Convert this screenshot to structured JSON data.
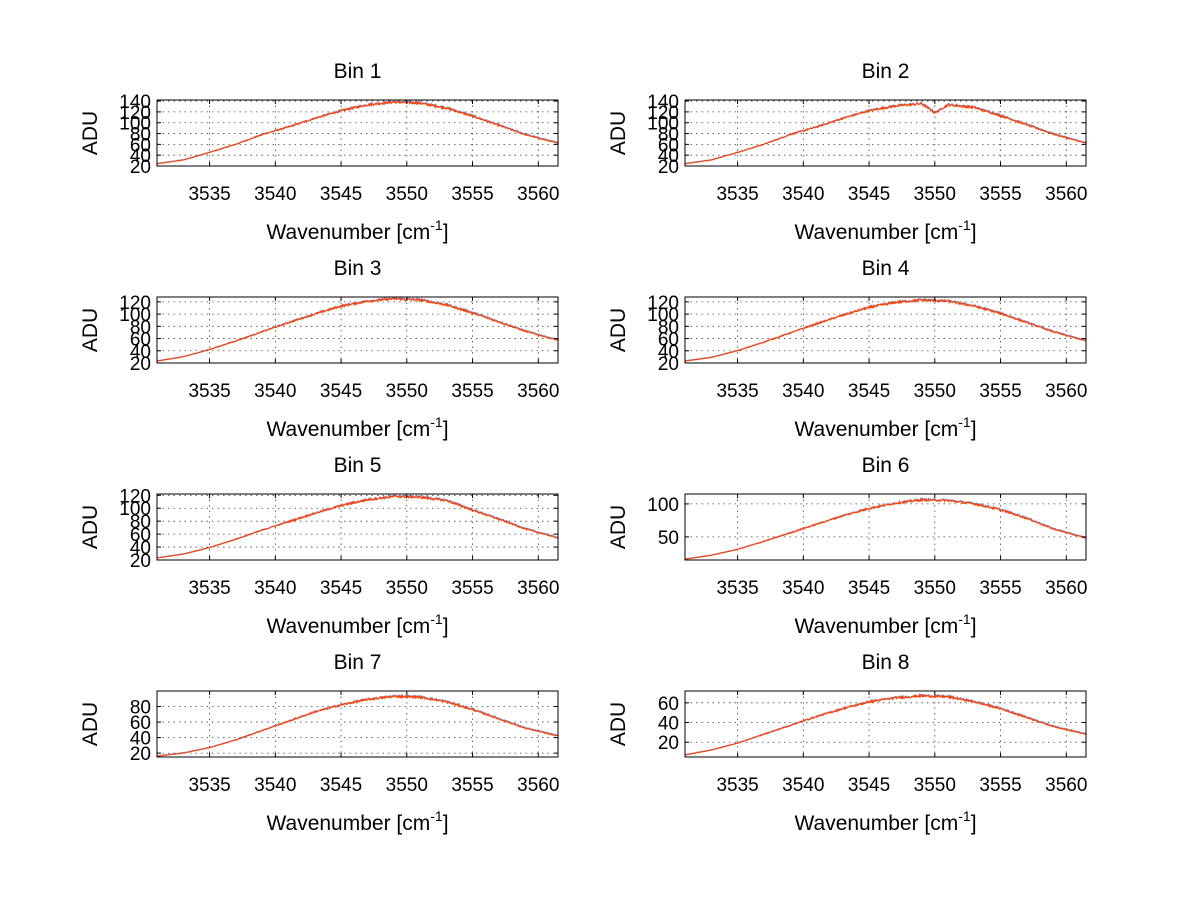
{
  "chart_data": [
    {
      "type": "line",
      "title": "Bin 1",
      "xlabel": "Wavenumber [cm",
      "xlabel_sup": "-1",
      "xlabel_end": "]",
      "ylabel": "ADU",
      "xlim": [
        3531,
        3561.5
      ],
      "ylim": [
        20,
        142
      ],
      "xticks": [
        3535,
        3540,
        3545,
        3550,
        3555,
        3560
      ],
      "yticks": [
        20,
        40,
        60,
        80,
        100,
        120,
        140
      ],
      "grid": true,
      "series": [
        {
          "color": "#ff4000",
          "x": [
            3531,
            3533,
            3535,
            3537,
            3539,
            3541,
            3543,
            3545,
            3547,
            3549,
            3551,
            3553,
            3555,
            3557,
            3559,
            3561.5
          ],
          "values": [
            24,
            31,
            45,
            60,
            78,
            92,
            108,
            122,
            133,
            138,
            136,
            127,
            112,
            95,
            78,
            62
          ]
        }
      ]
    },
    {
      "type": "line",
      "title": "Bin 2",
      "xlabel": "Wavenumber [cm",
      "xlabel_sup": "-1",
      "xlabel_end": "]",
      "ylabel": "ADU",
      "xlim": [
        3531,
        3561.5
      ],
      "ylim": [
        20,
        142
      ],
      "xticks": [
        3535,
        3540,
        3545,
        3550,
        3555,
        3560
      ],
      "yticks": [
        20,
        40,
        60,
        80,
        100,
        120,
        140
      ],
      "grid": true,
      "series": [
        {
          "color": "#ff4000",
          "x": [
            3531,
            3533,
            3535,
            3537,
            3539,
            3541,
            3543,
            3545,
            3547,
            3549,
            3550,
            3551,
            3553,
            3555,
            3557,
            3559,
            3561.5
          ],
          "values": [
            24,
            31,
            45,
            60,
            78,
            92,
            108,
            122,
            131,
            135,
            118,
            133,
            128,
            113,
            96,
            79,
            62
          ]
        }
      ]
    },
    {
      "type": "line",
      "title": "Bin 3",
      "xlabel": "Wavenumber [cm",
      "xlabel_sup": "-1",
      "xlabel_end": "]",
      "ylabel": "ADU",
      "xlim": [
        3531,
        3561.5
      ],
      "ylim": [
        20,
        128
      ],
      "xticks": [
        3535,
        3540,
        3545,
        3550,
        3555,
        3560
      ],
      "yticks": [
        20,
        40,
        60,
        80,
        100,
        120
      ],
      "grid": true,
      "series": [
        {
          "color": "#ff4000",
          "x": [
            3531,
            3533,
            3535,
            3537,
            3539,
            3541,
            3543,
            3545,
            3547,
            3549,
            3551,
            3553,
            3555,
            3557,
            3559,
            3561.5
          ],
          "values": [
            23,
            30,
            42,
            56,
            71,
            86,
            100,
            113,
            121,
            125,
            123,
            115,
            102,
            87,
            72,
            57
          ]
        }
      ]
    },
    {
      "type": "line",
      "title": "Bin 4",
      "xlabel": "Wavenumber [cm",
      "xlabel_sup": "-1",
      "xlabel_end": "]",
      "ylabel": "ADU",
      "xlim": [
        3531,
        3561.5
      ],
      "ylim": [
        20,
        128
      ],
      "xticks": [
        3535,
        3540,
        3545,
        3550,
        3555,
        3560
      ],
      "yticks": [
        20,
        40,
        60,
        80,
        100,
        120
      ],
      "grid": true,
      "series": [
        {
          "color": "#ff4000",
          "x": [
            3531,
            3533,
            3535,
            3537,
            3539,
            3541,
            3543,
            3545,
            3547,
            3549,
            3551,
            3553,
            3555,
            3557,
            3559,
            3561.5
          ],
          "values": [
            23,
            29,
            40,
            54,
            69,
            84,
            98,
            111,
            119,
            123,
            121,
            113,
            101,
            86,
            71,
            56
          ]
        }
      ]
    },
    {
      "type": "line",
      "title": "Bin 5",
      "xlabel": "Wavenumber [cm",
      "xlabel_sup": "-1",
      "xlabel_end": "]",
      "ylabel": "ADU",
      "xlim": [
        3531,
        3561.5
      ],
      "ylim": [
        20,
        122
      ],
      "xticks": [
        3535,
        3540,
        3545,
        3550,
        3555,
        3560
      ],
      "yticks": [
        20,
        40,
        60,
        80,
        100,
        120
      ],
      "grid": true,
      "series": [
        {
          "color": "#ff4000",
          "x": [
            3531,
            3533,
            3535,
            3537,
            3539,
            3541,
            3543,
            3545,
            3547,
            3549,
            3551,
            3553,
            3555,
            3557,
            3559,
            3561.5
          ],
          "values": [
            23,
            29,
            39,
            52,
            66,
            79,
            92,
            104,
            113,
            118,
            117,
            112,
            97,
            83,
            68,
            54
          ]
        }
      ]
    },
    {
      "type": "line",
      "title": "Bin 6",
      "xlabel": "Wavenumber [cm",
      "xlabel_sup": "-1",
      "xlabel_end": "]",
      "ylabel": "ADU",
      "xlim": [
        3531,
        3561.5
      ],
      "ylim": [
        15,
        115
      ],
      "xticks": [
        3535,
        3540,
        3545,
        3550,
        3555,
        3560
      ],
      "yticks": [
        50,
        100
      ],
      "grid": true,
      "series": [
        {
          "color": "#ff4000",
          "x": [
            3531,
            3533,
            3535,
            3537,
            3539,
            3541,
            3543,
            3545,
            3547,
            3549,
            3551,
            3553,
            3555,
            3557,
            3559,
            3561.5
          ],
          "values": [
            16,
            22,
            31,
            43,
            56,
            69,
            82,
            93,
            101,
            106,
            105,
            100,
            91,
            78,
            62,
            48
          ]
        }
      ]
    },
    {
      "type": "line",
      "title": "Bin 7",
      "xlabel": "Wavenumber [cm",
      "xlabel_sup": "-1",
      "xlabel_end": "]",
      "ylabel": "ADU",
      "xlim": [
        3531,
        3561.5
      ],
      "ylim": [
        15,
        100
      ],
      "xticks": [
        3535,
        3540,
        3545,
        3550,
        3555,
        3560
      ],
      "yticks": [
        20,
        40,
        60,
        80
      ],
      "grid": true,
      "series": [
        {
          "color": "#ff4000",
          "x": [
            3531,
            3533,
            3535,
            3537,
            3539,
            3541,
            3543,
            3545,
            3547,
            3549,
            3551,
            3553,
            3555,
            3557,
            3559,
            3561.5
          ],
          "values": [
            16,
            20,
            27,
            37,
            49,
            61,
            73,
            82,
            89,
            93,
            92,
            86,
            76,
            64,
            52,
            42
          ]
        }
      ]
    },
    {
      "type": "line",
      "title": "Bin 8",
      "xlabel": "Wavenumber [cm",
      "xlabel_sup": "-1",
      "xlabel_end": "]",
      "ylabel": "ADU",
      "xlim": [
        3531,
        3561.5
      ],
      "ylim": [
        5,
        72
      ],
      "xticks": [
        3535,
        3540,
        3545,
        3550,
        3555,
        3560
      ],
      "yticks": [
        20,
        40,
        60
      ],
      "grid": true,
      "series": [
        {
          "color": "#ff4000",
          "x": [
            3531,
            3533,
            3535,
            3537,
            3539,
            3541,
            3543,
            3545,
            3547,
            3549,
            3551,
            3553,
            3555,
            3557,
            3559,
            3561.5
          ],
          "values": [
            7,
            12,
            19,
            28,
            37,
            46,
            54,
            61,
            65,
            67,
            66,
            61,
            54,
            45,
            36,
            28
          ]
        }
      ]
    }
  ]
}
